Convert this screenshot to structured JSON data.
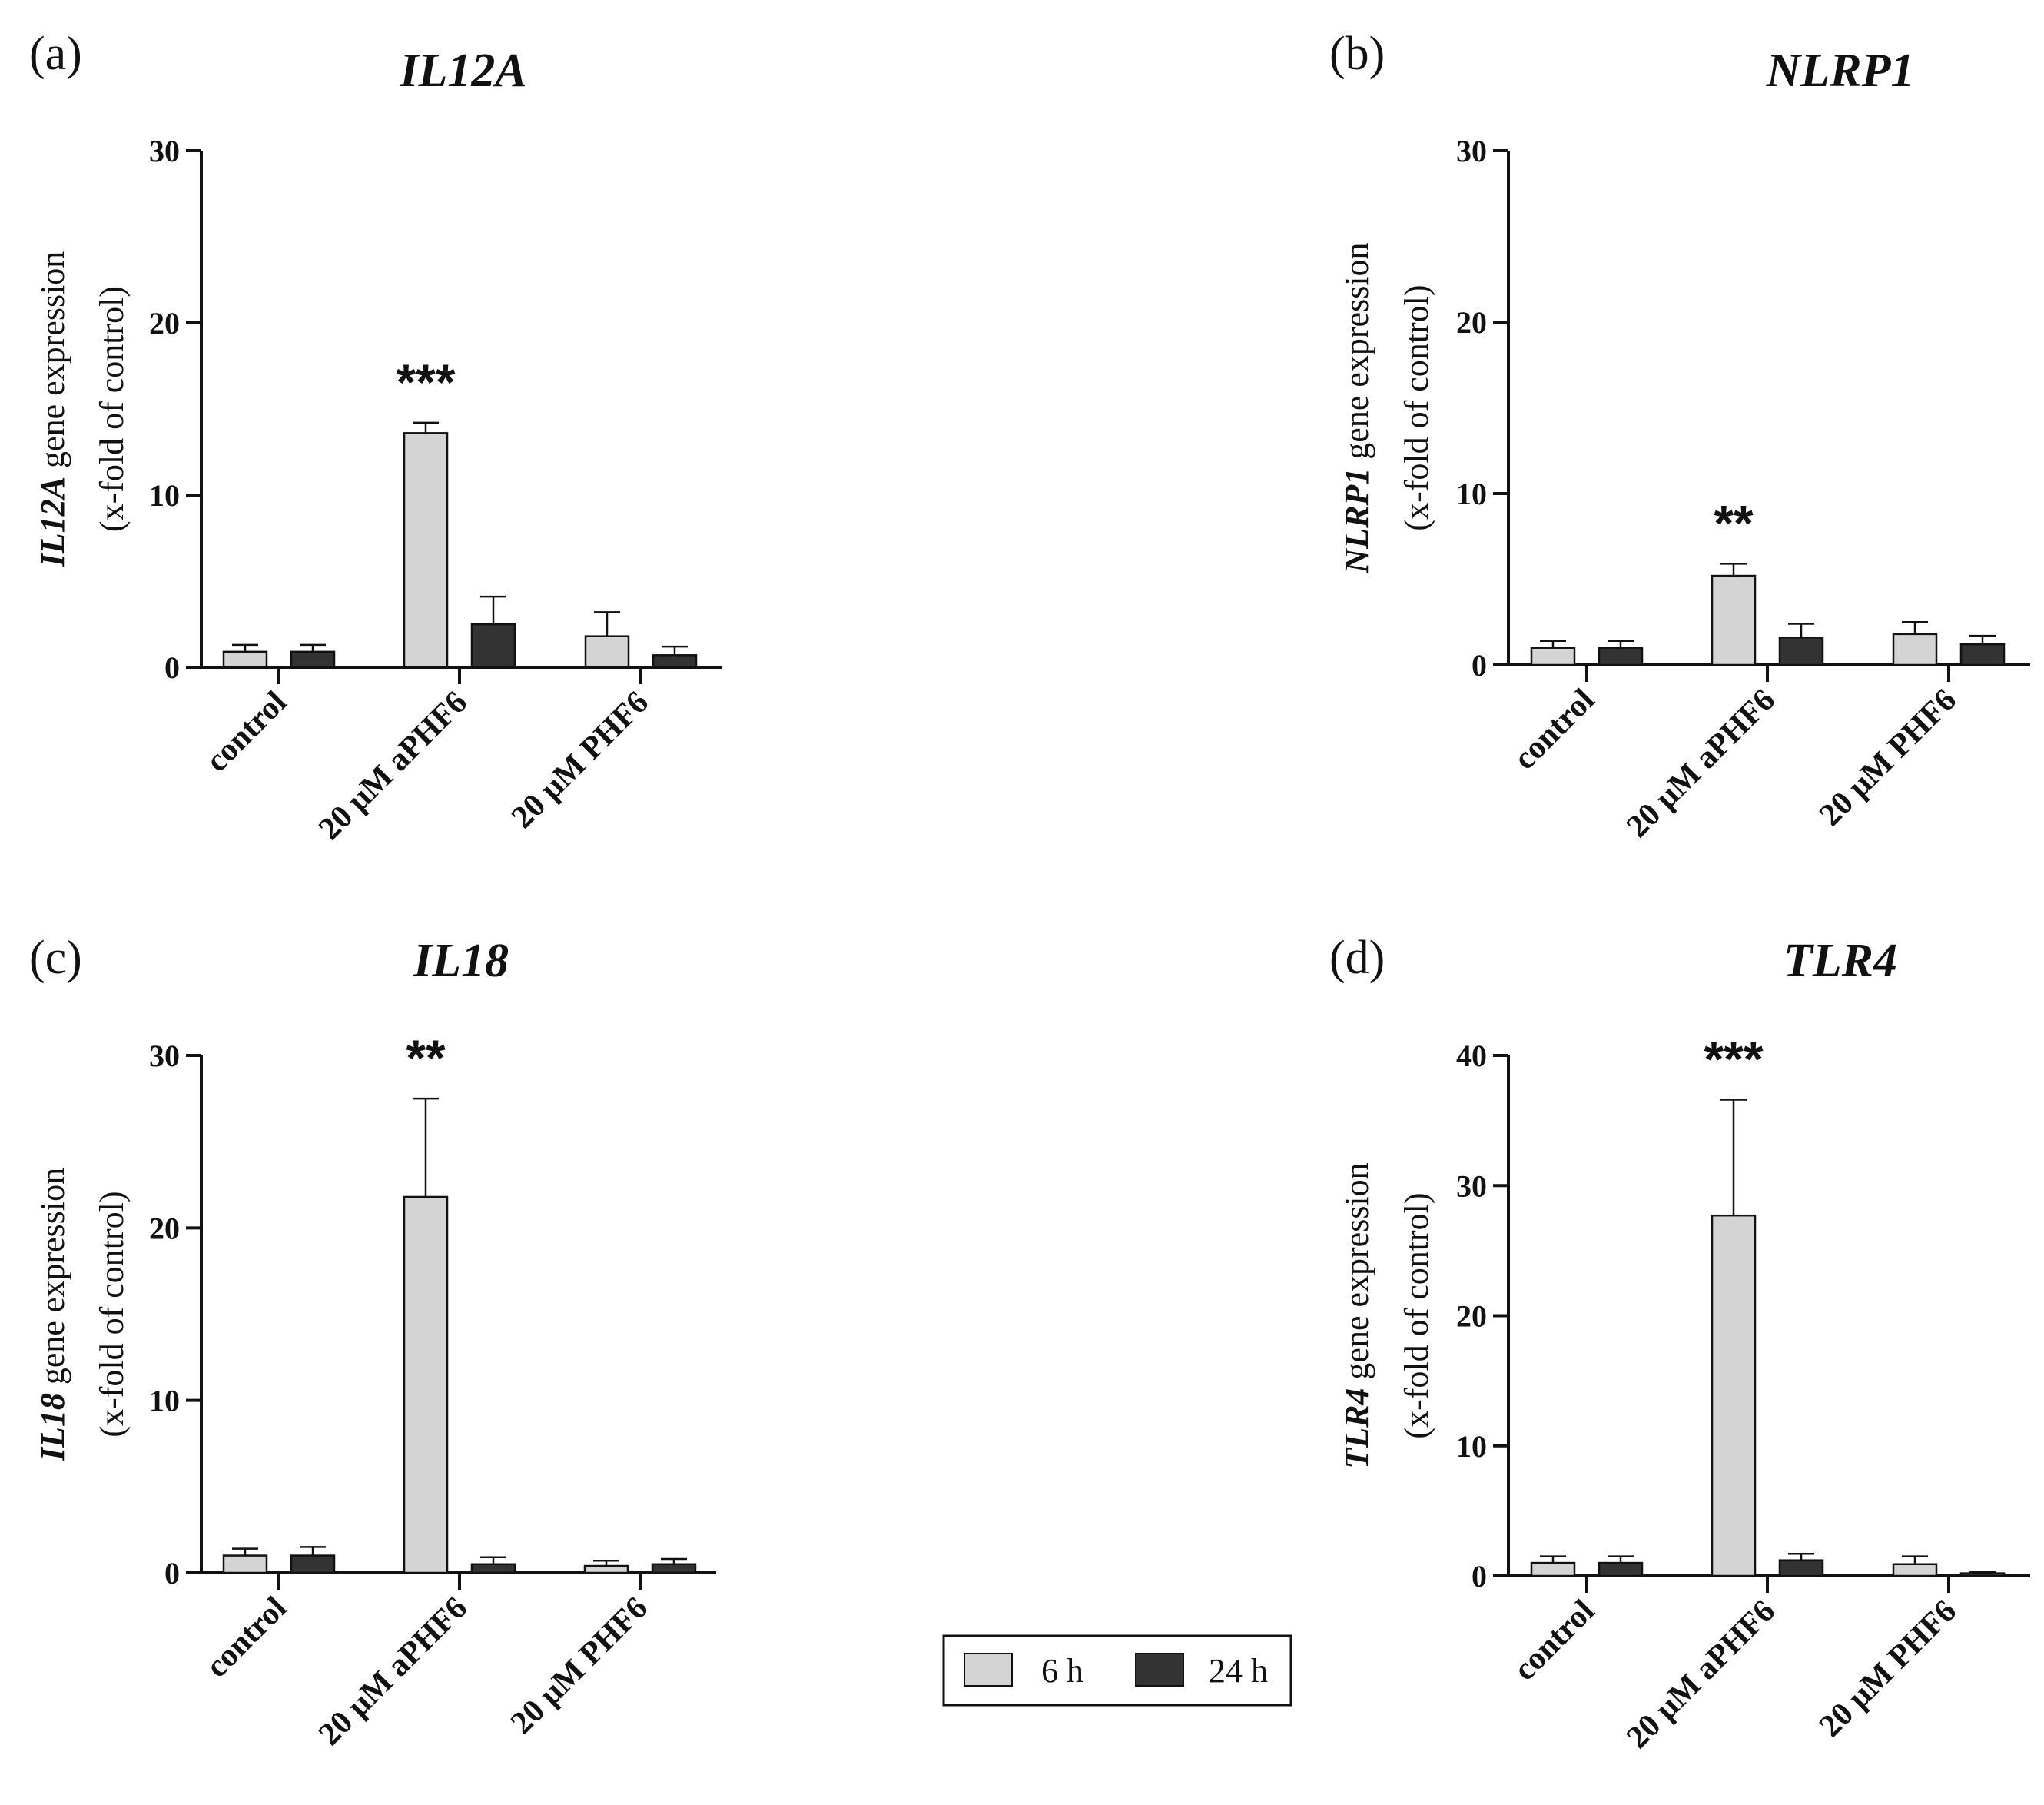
{
  "chart_data": [
    {
      "type": "bar",
      "panel_label": "(a)",
      "title": "IL12A",
      "ylabel_gene": "IL12A",
      "ylabel_rest": " gene expression",
      "ylabel_line2": "(x-fold of control)",
      "categories": [
        "control",
        "20 μM aPHF6",
        "20 μM PHF6"
      ],
      "ylim": [
        0,
        30
      ],
      "yticks": [
        0,
        10,
        20,
        30
      ],
      "series": [
        {
          "name": "6 h",
          "values": [
            0.9,
            13.6,
            1.8
          ],
          "errors": [
            0.4,
            0.6,
            1.4
          ]
        },
        {
          "name": "24 h",
          "values": [
            0.9,
            2.5,
            0.7
          ],
          "errors": [
            0.4,
            1.6,
            0.5
          ]
        }
      ],
      "annotations": [
        {
          "category_index": 1,
          "text": "***"
        }
      ]
    },
    {
      "type": "bar",
      "panel_label": "(b)",
      "title": "NLRP1",
      "ylabel_gene": "NLRP1",
      "ylabel_rest": " gene expression",
      "ylabel_line2": "(x-fold of control)",
      "categories": [
        "control",
        "20 μM aPHF6",
        "20 μM PHF6"
      ],
      "ylim": [
        0,
        30
      ],
      "yticks": [
        0,
        10,
        20,
        30
      ],
      "series": [
        {
          "name": "6 h",
          "values": [
            1.0,
            5.2,
            1.8
          ],
          "errors": [
            0.4,
            0.7,
            0.7
          ]
        },
        {
          "name": "24 h",
          "values": [
            1.0,
            1.6,
            1.2
          ],
          "errors": [
            0.4,
            0.8,
            0.5
          ]
        }
      ],
      "annotations": [
        {
          "category_index": 1,
          "text": "**"
        }
      ]
    },
    {
      "type": "bar",
      "panel_label": "(c)",
      "title": "IL18",
      "ylabel_gene": "IL18",
      "ylabel_rest": " gene expression",
      "ylabel_line2": "(x-fold of control)",
      "categories": [
        "control",
        "20 μM aPHF6",
        "20 μM PHF6"
      ],
      "ylim": [
        0,
        30
      ],
      "yticks": [
        0,
        10,
        20,
        30
      ],
      "series": [
        {
          "name": "6 h",
          "values": [
            1.0,
            21.8,
            0.4
          ],
          "errors": [
            0.4,
            5.7,
            0.3
          ]
        },
        {
          "name": "24 h",
          "values": [
            1.0,
            0.5,
            0.5
          ],
          "errors": [
            0.5,
            0.4,
            0.3
          ]
        }
      ],
      "annotations": [
        {
          "category_index": 1,
          "text": "**"
        }
      ]
    },
    {
      "type": "bar",
      "panel_label": "(d)",
      "title": "TLR4",
      "ylabel_gene": "TLR4",
      "ylabel_rest": " gene expression",
      "ylabel_line2": "(x-fold of control)",
      "categories": [
        "control",
        "20 μM aPHF6",
        "20 μM PHF6"
      ],
      "ylim": [
        0,
        40
      ],
      "yticks": [
        0,
        10,
        20,
        30,
        40
      ],
      "series": [
        {
          "name": "6 h",
          "values": [
            1.0,
            27.7,
            0.9
          ],
          "errors": [
            0.5,
            8.9,
            0.6
          ]
        },
        {
          "name": "24 h",
          "values": [
            1.0,
            1.2,
            0.2
          ],
          "errors": [
            0.5,
            0.5,
            0.1
          ]
        }
      ],
      "annotations": [
        {
          "category_index": 1,
          "text": "***"
        }
      ]
    }
  ],
  "legend": {
    "entries": [
      {
        "label": "6 h",
        "color": "#d4d4d4"
      },
      {
        "label": "24 h",
        "color": "#333333"
      }
    ]
  },
  "colors": {
    "series_6h": "#d4d4d4",
    "series_24h": "#333333",
    "axis": "#111111"
  }
}
